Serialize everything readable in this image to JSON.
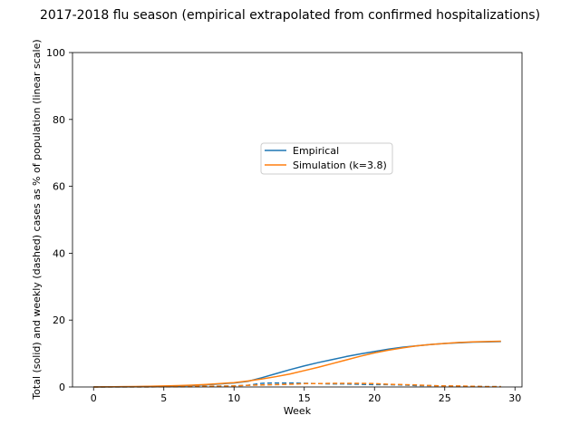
{
  "chart_data": {
    "type": "line",
    "title": "2017-2018 flu season (empirical extrapolated from confirmed hospitalizations)",
    "xlabel": "Week",
    "ylabel": "Total (solid) and weekly (dashed) cases as % of population (linear scale)",
    "xlim": [
      -1.5,
      30.5
    ],
    "ylim": [
      0,
      100
    ],
    "xticks": [
      0,
      5,
      10,
      15,
      20,
      25,
      30
    ],
    "yticks": [
      0,
      20,
      40,
      60,
      80,
      100
    ],
    "grid": false,
    "legend_position": "upper-center",
    "x": [
      0,
      1,
      2,
      3,
      4,
      5,
      6,
      7,
      8,
      9,
      10,
      11,
      12,
      13,
      14,
      15,
      16,
      17,
      18,
      19,
      20,
      21,
      22,
      23,
      24,
      25,
      26,
      27,
      28,
      29
    ],
    "series": [
      {
        "name": "Empirical",
        "style": "solid",
        "color": "#1f77b4",
        "values": [
          0.0,
          0.02,
          0.05,
          0.08,
          0.12,
          0.2,
          0.3,
          0.45,
          0.65,
          0.9,
          1.2,
          1.7,
          2.8,
          4.0,
          5.2,
          6.3,
          7.3,
          8.2,
          9.1,
          9.9,
          10.6,
          11.3,
          11.9,
          12.3,
          12.7,
          13.0,
          13.2,
          13.4,
          13.5,
          13.6
        ]
      },
      {
        "name": "Simulation (k=3.8)",
        "style": "solid",
        "color": "#ff7f0e",
        "values": [
          0.0,
          0.05,
          0.1,
          0.15,
          0.2,
          0.3,
          0.4,
          0.55,
          0.75,
          1.0,
          1.3,
          1.8,
          2.4,
          3.1,
          3.9,
          4.9,
          5.9,
          7.0,
          8.1,
          9.2,
          10.2,
          11.0,
          11.7,
          12.3,
          12.7,
          13.0,
          13.3,
          13.5,
          13.6,
          13.7
        ]
      },
      {
        "name": "",
        "style": "dashed",
        "color": "#1f77b4",
        "values": [
          0.0,
          0.02,
          0.03,
          0.03,
          0.04,
          0.08,
          0.1,
          0.15,
          0.2,
          0.25,
          0.3,
          0.5,
          1.1,
          1.2,
          1.2,
          1.1,
          1.0,
          0.9,
          0.9,
          0.8,
          0.7,
          0.7,
          0.6,
          0.4,
          0.4,
          0.3,
          0.2,
          0.2,
          0.1,
          0.1
        ]
      },
      {
        "name": "",
        "style": "dashed",
        "color": "#ff7f0e",
        "values": [
          0.0,
          0.05,
          0.05,
          0.05,
          0.05,
          0.1,
          0.1,
          0.15,
          0.2,
          0.25,
          0.3,
          0.5,
          0.6,
          0.7,
          0.8,
          1.0,
          1.0,
          1.1,
          1.1,
          1.1,
          1.0,
          0.8,
          0.7,
          0.6,
          0.4,
          0.3,
          0.3,
          0.2,
          0.1,
          0.1
        ]
      }
    ]
  }
}
